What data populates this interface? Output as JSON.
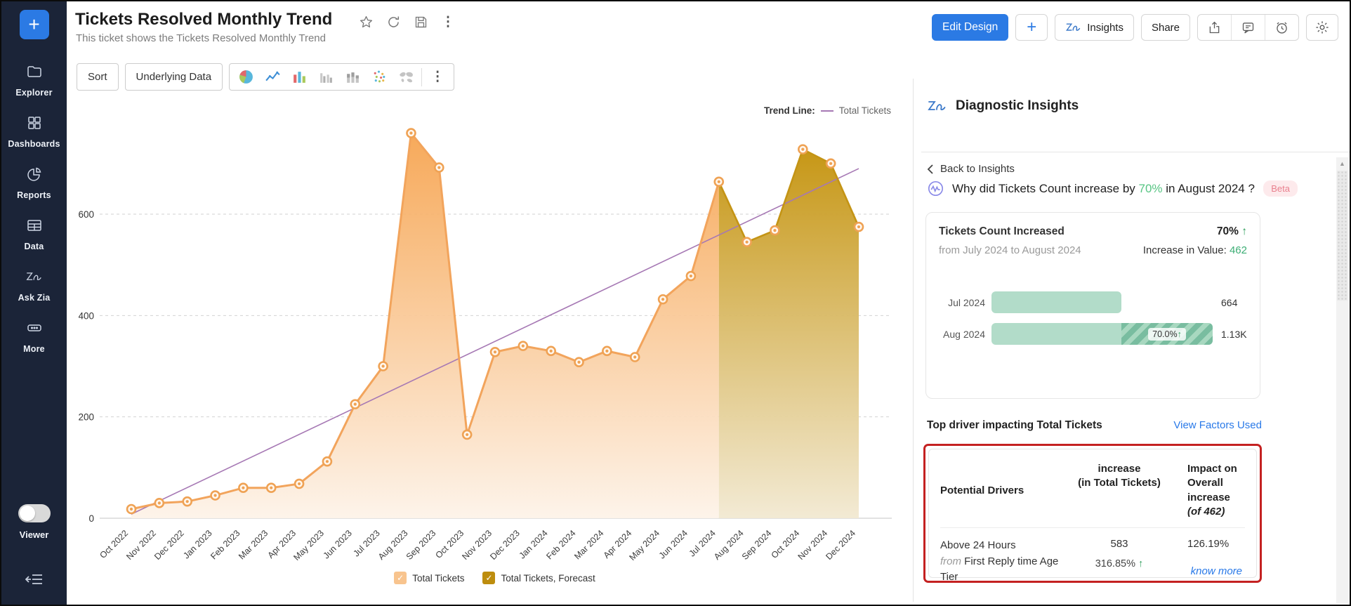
{
  "icons": {
    "kebab": "⋮",
    "scroll_up": "▲"
  },
  "sidebar": {
    "plus_label": "+",
    "items": [
      {
        "icon": "folder-icon",
        "label": "Explorer"
      },
      {
        "icon": "grid-icon",
        "label": "Dashboards"
      },
      {
        "icon": "pie-icon",
        "label": "Reports"
      },
      {
        "icon": "table-icon",
        "label": "Data"
      },
      {
        "icon": "zia-icon",
        "label": "Ask Zia"
      },
      {
        "icon": "ellipsis-icon",
        "label": "More"
      }
    ],
    "viewer_label": "Viewer"
  },
  "header": {
    "title": "Tickets Resolved Monthly Trend",
    "subtitle": "This ticket shows the Tickets Resolved Monthly Trend",
    "title_icons": [
      "star-icon",
      "refresh-icon",
      "save-icon",
      "kebab-menu-icon"
    ],
    "actions": {
      "edit_design": "Edit Design",
      "plus": "+",
      "insights": "Insights",
      "share": "Share",
      "icon_buttons": [
        "export-icon",
        "comment-icon",
        "alerts-icon",
        "settings-gear-icon"
      ]
    }
  },
  "toolbar": {
    "sort": "Sort",
    "underlying_data": "Underlying Data",
    "chart_type_icons": [
      "pie-chart-icon",
      "line-chart-icon",
      "bar-chart-icon",
      "clustered-bar-icon",
      "stacked-bar-icon",
      "scatter-chart-icon",
      "map-chart-icon",
      "more-chart-types-icon"
    ]
  },
  "chart_data": {
    "type": "area",
    "title": "Tickets Resolved Monthly Trend",
    "x": [
      "Oct 2022",
      "Nov 2022",
      "Dec 2022",
      "Jan 2023",
      "Feb 2023",
      "Mar 2023",
      "Apr 2023",
      "May 2023",
      "Jun 2023",
      "Jul 2023",
      "Aug 2023",
      "Sep 2023",
      "Oct 2023",
      "Nov 2023",
      "Dec 2023",
      "Jan 2024",
      "Feb 2024",
      "Mar 2024",
      "Apr 2024",
      "May 2024",
      "Jun 2024",
      "Jul 2024",
      "Aug 2024",
      "Sep 2024",
      "Oct 2024",
      "Nov 2024",
      "Dec 2024"
    ],
    "series": [
      {
        "name": "Total Tickets",
        "values": [
          18,
          30,
          33,
          45,
          60,
          60,
          68,
          112,
          225,
          300,
          760,
          692,
          165,
          328,
          340,
          330,
          308,
          330,
          318,
          432,
          478,
          664
        ]
      },
      {
        "name": "Total Tickets, Forecast",
        "start_index": 21,
        "values": [
          664,
          545,
          568,
          728,
          700,
          575
        ]
      }
    ],
    "trend_line": {
      "label": "Trend Line:",
      "series_label": "Total Tickets",
      "start_value": 8,
      "end_value": 690
    },
    "yticks": [
      0,
      200,
      400,
      600
    ],
    "ylim": [
      0,
      830
    ],
    "grid": "horizontal-dashed",
    "legend_position": "bottom",
    "legend": [
      {
        "label": "Total Tickets",
        "color": "#f8c48e"
      },
      {
        "label": "Total Tickets, Forecast",
        "color": "#bd8d0e"
      }
    ],
    "colors": {
      "area_line": "#f2a45c",
      "forecast_line": "#c49415",
      "trend": "#a678b4",
      "marker_stroke": "#efa254"
    }
  },
  "insights_panel": {
    "title": "Diagnostic Insights",
    "back_link": "Back to Insights",
    "question": {
      "prefix": "Why did Tickets Count increase by ",
      "highlight": "70%",
      "suffix": " in August 2024 ?",
      "badge": "Beta"
    },
    "summary_card": {
      "title": "Tickets Count Increased",
      "change_pct": "70%",
      "change_arrow": "↑",
      "period": "from July 2024 to August 2024",
      "increase_label": "Increase in Value: ",
      "increase_value": "462",
      "bar_max": 1130,
      "bars": [
        {
          "label": "Jul 2024",
          "display": "664",
          "value": 664,
          "increase_from": null,
          "hatch_label": "",
          "hatch_arrow": ""
        },
        {
          "label": "Aug 2024",
          "display": "1.13K",
          "value": 1130,
          "increase_from": 664,
          "hatch_label": "70.0%",
          "hatch_arrow": "↑"
        }
      ]
    },
    "driver_section": {
      "heading": "Top driver impacting Total Tickets",
      "link": "View Factors Used",
      "table": {
        "col1": "Potential Drivers",
        "col2_line1": "increase",
        "col2_line2": "(in Total Tickets)",
        "col3_line1": "Impact on Overall",
        "col3_line2": "increase ",
        "col3_line2_italic": "(of 462)",
        "row": {
          "driver": "Above 24 Hours",
          "from_word": "from",
          "from_rest": " First Reply time Age Tier",
          "increase_value": "583",
          "increase_pct": "316.85% ",
          "increase_arrow": "↑",
          "impact": "126.19%",
          "know_more": "know more"
        }
      }
    }
  }
}
